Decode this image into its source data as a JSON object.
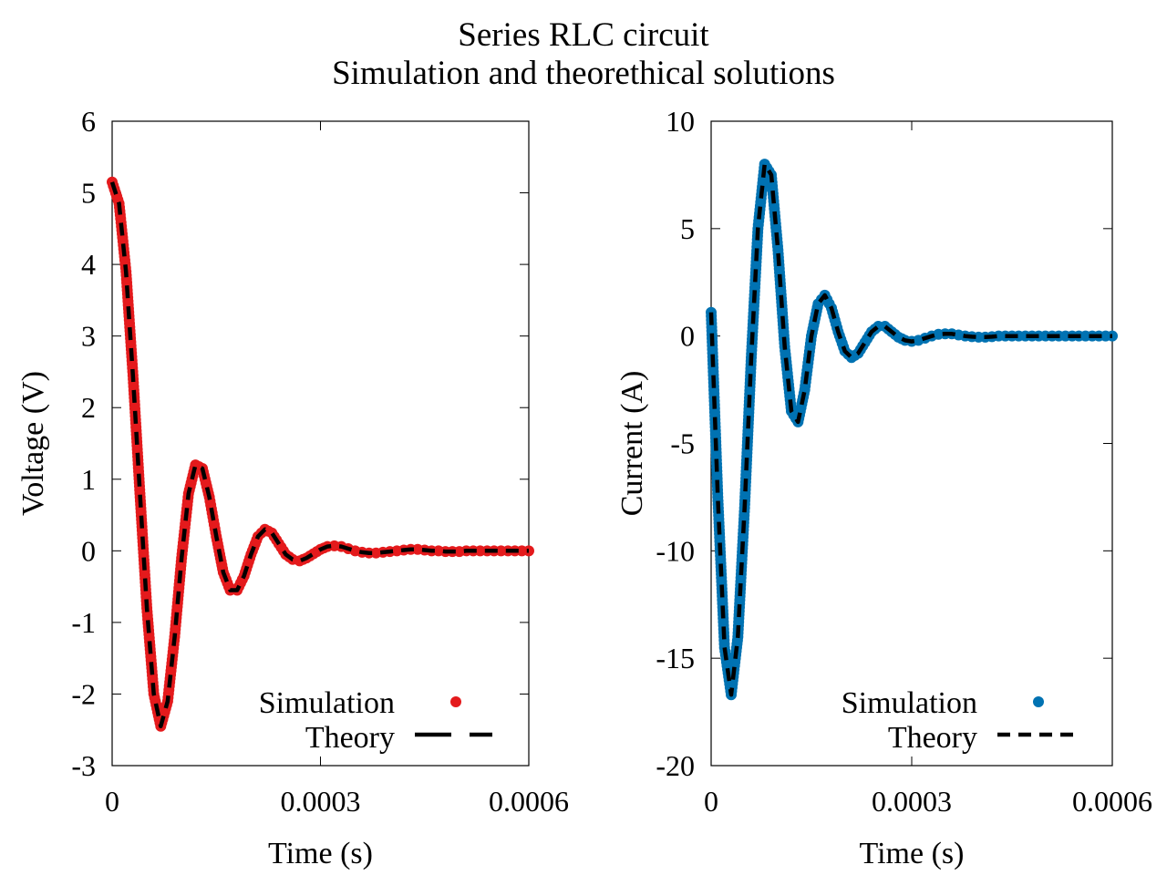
{
  "figure": {
    "title": "Series RLC circuit",
    "subtitle": "Simulation and theorethical solutions"
  },
  "chart_data": [
    {
      "type": "scatter",
      "panel": "left",
      "xlabel": "Time (s)",
      "ylabel": "Voltage (V)",
      "xlim": [
        0,
        0.0006
      ],
      "ylim": [
        -3,
        6
      ],
      "xticks": [
        "0",
        "0.0003",
        "0.0006"
      ],
      "yticks": [
        "-3",
        "-2",
        "-1",
        "0",
        "1",
        "2",
        "3",
        "4",
        "5",
        "6"
      ],
      "legend_position": "bottom-right",
      "grid": false,
      "series": [
        {
          "name": "Simulation",
          "style": "points",
          "color": "#e41a1c",
          "x": [
            0,
            1e-05,
            2e-05,
            3e-05,
            4e-05,
            5e-05,
            6e-05,
            7e-05,
            8e-05,
            9e-05,
            0.0001,
            0.00011,
            0.00012,
            0.00013,
            0.00014,
            0.00015,
            0.00016,
            0.00017,
            0.00018,
            0.00019,
            0.0002,
            0.00021,
            0.00022,
            0.00023,
            0.00024,
            0.00025,
            0.00026,
            0.00027,
            0.00028,
            0.00029,
            0.0003,
            0.00031,
            0.00032,
            0.00033,
            0.00034,
            0.00035,
            0.00036,
            0.00037,
            0.00038,
            0.00039,
            0.0004,
            0.00041,
            0.00042,
            0.00043,
            0.00044,
            0.00045,
            0.00046,
            0.00047,
            0.00048,
            0.00049,
            0.0005,
            0.00051,
            0.00052,
            0.00053,
            0.00054,
            0.00055,
            0.00056,
            0.00057,
            0.00058,
            0.00059,
            0.0006
          ],
          "y": [
            5.15,
            4.85,
            3.9,
            2.45,
            0.8,
            -0.8,
            -2.0,
            -2.45,
            -2.1,
            -1.2,
            -0.1,
            0.8,
            1.2,
            1.15,
            0.75,
            0.2,
            -0.3,
            -0.55,
            -0.55,
            -0.35,
            -0.05,
            0.2,
            0.3,
            0.25,
            0.1,
            -0.05,
            -0.12,
            -0.14,
            -0.1,
            -0.04,
            0.02,
            0.06,
            0.07,
            0.06,
            0.03,
            0.0,
            -0.02,
            -0.03,
            -0.03,
            -0.02,
            -0.01,
            0.0,
            0.01,
            0.02,
            0.02,
            0.01,
            0.0,
            0.0,
            -0.01,
            -0.01,
            -0.01,
            0.0,
            0.0,
            0.0,
            0.0,
            0.0,
            0.0,
            0.0,
            0.0,
            0.0,
            0.0
          ]
        },
        {
          "name": "Theory",
          "style": "dashed-line",
          "color": "#000000",
          "x": [
            0,
            1e-05,
            2e-05,
            3e-05,
            4e-05,
            5e-05,
            6e-05,
            7e-05,
            8e-05,
            9e-05,
            0.0001,
            0.00011,
            0.00012,
            0.00013,
            0.00014,
            0.00015,
            0.00016,
            0.00017,
            0.00018,
            0.00019,
            0.0002,
            0.00021,
            0.00022,
            0.00023,
            0.00024,
            0.00025,
            0.00026,
            0.00027,
            0.00028,
            0.00029,
            0.0003,
            0.00031,
            0.00032,
            0.00033,
            0.00034,
            0.00035,
            0.00036,
            0.00037,
            0.00038,
            0.00039,
            0.0004,
            0.00041,
            0.00042,
            0.00043,
            0.00044,
            0.00045,
            0.00046,
            0.00047,
            0.00048,
            0.00049,
            0.0005,
            0.00051,
            0.00052,
            0.00053,
            0.00054,
            0.00055,
            0.00056,
            0.00057,
            0.00058,
            0.00059,
            0.0006
          ],
          "y": [
            5.15,
            4.85,
            3.9,
            2.45,
            0.8,
            -0.8,
            -2.0,
            -2.45,
            -2.1,
            -1.2,
            -0.1,
            0.8,
            1.2,
            1.15,
            0.75,
            0.2,
            -0.3,
            -0.55,
            -0.55,
            -0.35,
            -0.05,
            0.2,
            0.3,
            0.25,
            0.1,
            -0.05,
            -0.12,
            -0.14,
            -0.1,
            -0.04,
            0.02,
            0.06,
            0.07,
            0.06,
            0.03,
            0.0,
            -0.02,
            -0.03,
            -0.03,
            -0.02,
            -0.01,
            0.0,
            0.01,
            0.02,
            0.02,
            0.01,
            0.0,
            0.0,
            -0.01,
            -0.01,
            -0.01,
            0.0,
            0.0,
            0.0,
            0.0,
            0.0,
            0.0,
            0.0,
            0.0,
            0.0,
            0.0
          ]
        }
      ]
    },
    {
      "type": "scatter",
      "panel": "right",
      "xlabel": "Time (s)",
      "ylabel": "Current (A)",
      "xlim": [
        0,
        0.0006
      ],
      "ylim": [
        -20,
        10
      ],
      "xticks": [
        "0",
        "0.0003",
        "0.0006"
      ],
      "yticks": [
        "-20",
        "-15",
        "-10",
        "-5",
        "0",
        "5",
        "10"
      ],
      "legend_position": "bottom-right",
      "grid": false,
      "series": [
        {
          "name": "Simulation",
          "style": "points",
          "color": "#0072b2",
          "x": [
            0,
            1e-05,
            2e-05,
            3e-05,
            4e-05,
            5e-05,
            6e-05,
            7e-05,
            8e-05,
            9e-05,
            0.0001,
            0.00011,
            0.00012,
            0.00013,
            0.00014,
            0.00015,
            0.00016,
            0.00017,
            0.00018,
            0.00019,
            0.0002,
            0.00021,
            0.00022,
            0.00023,
            0.00024,
            0.00025,
            0.00026,
            0.00027,
            0.00028,
            0.00029,
            0.0003,
            0.00031,
            0.00032,
            0.00033,
            0.00034,
            0.00035,
            0.00036,
            0.00037,
            0.00038,
            0.00039,
            0.0004,
            0.00041,
            0.00042,
            0.00043,
            0.00044,
            0.00045,
            0.00046,
            0.00047,
            0.00048,
            0.00049,
            0.0005,
            0.00051,
            0.00052,
            0.00053,
            0.00054,
            0.00055,
            0.00056,
            0.00057,
            0.00058,
            0.00059,
            0.0006
          ],
          "y": [
            1.1,
            -7.5,
            -14.5,
            -16.7,
            -14.0,
            -8.0,
            -1.0,
            5.0,
            8.0,
            7.5,
            4.0,
            -0.5,
            -3.5,
            -4.0,
            -2.5,
            0.0,
            1.5,
            1.9,
            1.3,
            0.2,
            -0.7,
            -1.0,
            -0.8,
            -0.3,
            0.2,
            0.45,
            0.45,
            0.2,
            -0.05,
            -0.2,
            -0.25,
            -0.2,
            -0.1,
            0.0,
            0.08,
            0.1,
            0.1,
            0.05,
            0.0,
            -0.03,
            -0.05,
            -0.05,
            -0.03,
            0.0,
            0.0,
            0.0,
            0.0,
            0.0,
            0.0,
            0.0,
            0.0,
            0.0,
            0.0,
            0.0,
            0.0,
            0.0,
            0.0,
            0.0,
            0.0,
            0.0,
            0.0
          ]
        },
        {
          "name": "Theory",
          "style": "dashed-line",
          "color": "#000000",
          "x": [
            0,
            1e-05,
            2e-05,
            3e-05,
            4e-05,
            5e-05,
            6e-05,
            7e-05,
            8e-05,
            9e-05,
            0.0001,
            0.00011,
            0.00012,
            0.00013,
            0.00014,
            0.00015,
            0.00016,
            0.00017,
            0.00018,
            0.00019,
            0.0002,
            0.00021,
            0.00022,
            0.00023,
            0.00024,
            0.00025,
            0.00026,
            0.00027,
            0.00028,
            0.00029,
            0.0003,
            0.00031,
            0.00032,
            0.00033,
            0.00034,
            0.00035,
            0.00036,
            0.00037,
            0.00038,
            0.00039,
            0.0004,
            0.00041,
            0.00042,
            0.00043,
            0.00044,
            0.00045,
            0.00046,
            0.00047,
            0.00048,
            0.00049,
            0.0005,
            0.00051,
            0.00052,
            0.00053,
            0.00054,
            0.00055,
            0.00056,
            0.00057,
            0.00058,
            0.00059,
            0.0006
          ],
          "y": [
            1.1,
            -7.5,
            -14.5,
            -16.7,
            -14.0,
            -8.0,
            -1.0,
            5.0,
            8.0,
            7.5,
            4.0,
            -0.5,
            -3.5,
            -4.0,
            -2.5,
            0.0,
            1.5,
            1.9,
            1.3,
            0.2,
            -0.7,
            -1.0,
            -0.8,
            -0.3,
            0.2,
            0.45,
            0.45,
            0.2,
            -0.05,
            -0.2,
            -0.25,
            -0.2,
            -0.1,
            0.0,
            0.08,
            0.1,
            0.1,
            0.05,
            0.0,
            -0.03,
            -0.05,
            -0.05,
            -0.03,
            0.0,
            0.0,
            0.0,
            0.0,
            0.0,
            0.0,
            0.0,
            0.0,
            0.0,
            0.0,
            0.0,
            0.0,
            0.0,
            0.0,
            0.0,
            0.0,
            0.0,
            0.0
          ]
        }
      ]
    }
  ]
}
